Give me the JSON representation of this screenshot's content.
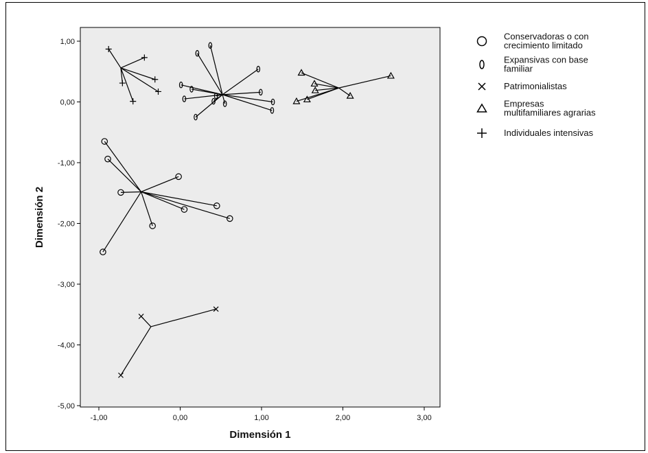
{
  "chart_data": {
    "type": "scatter",
    "title": "",
    "xlabel": "Dimensión 1",
    "ylabel": "Dimensión 2",
    "xlim": [
      -1.25,
      3.2
    ],
    "ylim": [
      -5.0,
      1.3
    ],
    "x_ticks": [
      -1.0,
      0.0,
      1.0,
      2.0,
      3.0
    ],
    "x_tick_labels": [
      "-1,00",
      "0,00",
      "1,00",
      "2,00",
      "3,00"
    ],
    "y_ticks": [
      1.0,
      0.0,
      -1.0,
      -2.0,
      -3.0,
      -4.0,
      -5.0
    ],
    "y_tick_labels": [
      "1,00",
      "0,00",
      "-1,00",
      "-2,00",
      "-3,00",
      "-4,00",
      "-5,00"
    ],
    "grid": false,
    "legend_position": "right",
    "series": [
      {
        "name": "Conservadoras o con crecimiento limitado",
        "marker": "circle",
        "centroid": [
          -0.48,
          -1.48
        ],
        "points": [
          [
            -0.93,
            -0.65
          ],
          [
            -0.89,
            -0.94
          ],
          [
            -0.73,
            -1.49
          ],
          [
            -0.02,
            -1.23
          ],
          [
            0.05,
            -1.77
          ],
          [
            0.45,
            -1.71
          ],
          [
            0.61,
            -1.92
          ],
          [
            -0.34,
            -2.04
          ],
          [
            -0.95,
            -2.47
          ]
        ]
      },
      {
        "name": "Expansivas con base familiar",
        "marker": "ellipse",
        "centroid": [
          0.52,
          0.12
        ],
        "points": [
          [
            0.21,
            0.8
          ],
          [
            0.37,
            0.93
          ],
          [
            0.96,
            0.54
          ],
          [
            0.01,
            0.28
          ],
          [
            0.14,
            0.21
          ],
          [
            0.44,
            0.1
          ],
          [
            0.99,
            0.16
          ],
          [
            0.05,
            0.05
          ],
          [
            0.41,
            0.01
          ],
          [
            0.55,
            -0.03
          ],
          [
            1.14,
            0.0
          ],
          [
            1.13,
            -0.14
          ],
          [
            0.19,
            -0.25
          ]
        ]
      },
      {
        "name": "Patrimonialistas",
        "marker": "x",
        "centroid": [
          -0.36,
          -3.7
        ],
        "points": [
          [
            -0.48,
            -3.53
          ],
          [
            0.44,
            -3.41
          ],
          [
            -0.73,
            -4.5
          ]
        ]
      },
      {
        "name": "Empresas multifamiliares agrarias",
        "marker": "triangle",
        "centroid": [
          1.95,
          0.23
        ],
        "points": [
          [
            1.49,
            0.48
          ],
          [
            1.65,
            0.3
          ],
          [
            1.66,
            0.19
          ],
          [
            1.56,
            0.04
          ],
          [
            1.43,
            0.01
          ],
          [
            2.09,
            0.1
          ],
          [
            2.59,
            0.43
          ]
        ]
      },
      {
        "name": "Individuales intensivas",
        "marker": "plus",
        "centroid": [
          -0.73,
          0.56
        ],
        "points": [
          [
            -0.88,
            0.87
          ],
          [
            -0.44,
            0.73
          ],
          [
            -0.31,
            0.37
          ],
          [
            -0.27,
            0.17
          ],
          [
            -0.71,
            0.31
          ],
          [
            -0.58,
            0.01
          ]
        ]
      }
    ]
  },
  "legend": {
    "entries": [
      {
        "marker": "circle",
        "lines": [
          "Conservadoras o con",
          "crecimiento limitado"
        ]
      },
      {
        "marker": "ellipse",
        "lines": [
          "Expansivas con base",
          "familiar"
        ]
      },
      {
        "marker": "x",
        "lines": [
          "Patrimonialistas"
        ]
      },
      {
        "marker": "triangle",
        "lines": [
          "Empresas",
          "multifamiliares agrarias"
        ]
      },
      {
        "marker": "plus",
        "lines": [
          "Individuales intensivas"
        ]
      }
    ]
  },
  "colors": {
    "plot_background": "#ececec",
    "marker_stroke": "#000000",
    "line": "#000000"
  }
}
